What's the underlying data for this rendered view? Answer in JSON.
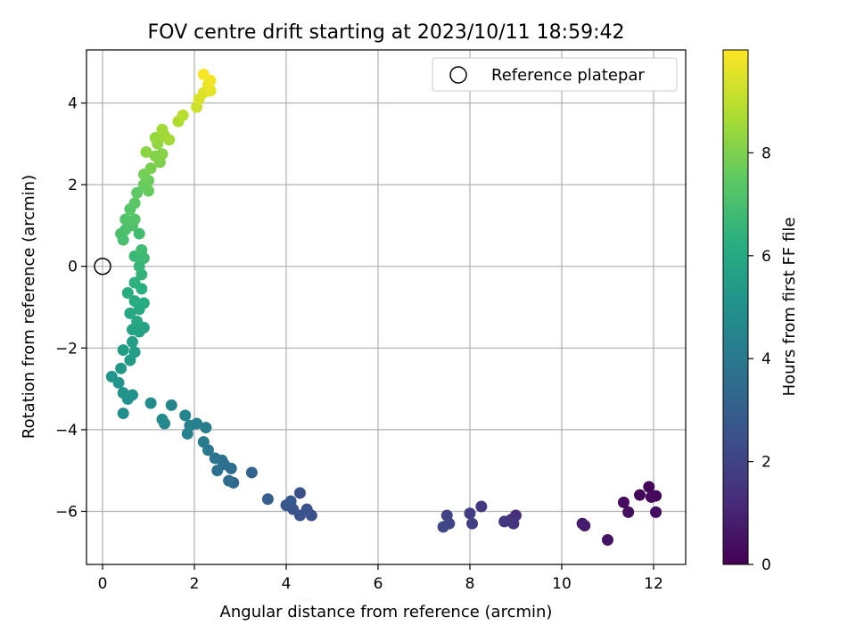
{
  "chart_data": {
    "type": "scatter",
    "title": "FOV centre drift starting at 2023/10/11 18:59:42",
    "xlabel": "Angular distance from reference (arcmin)",
    "ylabel": "Rotation from reference (arcmin)",
    "xlim": [
      -0.35,
      12.7
    ],
    "ylim": [
      -7.3,
      5.3
    ],
    "xticks": [
      0,
      2,
      4,
      6,
      8,
      10,
      12
    ],
    "yticks": [
      -6,
      -4,
      -2,
      0,
      2,
      4
    ],
    "grid": true,
    "legend": {
      "placement": "top-right",
      "entries": [
        "Reference platepar"
      ]
    },
    "reference_point": {
      "x": 0,
      "y": 0,
      "label": "Reference platepar"
    },
    "colorbar": {
      "label": "Hours from first FF file",
      "range": [
        0,
        10
      ],
      "ticks": [
        0,
        2,
        4,
        6,
        8
      ],
      "colormap": "viridis"
    },
    "series": [
      {
        "points": [
          {
            "x": 11.9,
            "y": -5.4,
            "c": 0.1
          },
          {
            "x": 12.05,
            "y": -5.62,
            "c": 0.15
          },
          {
            "x": 11.7,
            "y": -5.6,
            "c": 0.2
          },
          {
            "x": 11.95,
            "y": -5.65,
            "c": 0.25
          },
          {
            "x": 11.35,
            "y": -5.78,
            "c": 0.3
          },
          {
            "x": 12.05,
            "y": -6.02,
            "c": 0.35
          },
          {
            "x": 11.45,
            "y": -6.02,
            "c": 0.4
          },
          {
            "x": 11.0,
            "y": -6.7,
            "c": 0.5
          },
          {
            "x": 10.45,
            "y": -6.3,
            "c": 0.7
          },
          {
            "x": 10.5,
            "y": -6.35,
            "c": 0.8
          },
          {
            "x": 9.0,
            "y": -6.1,
            "c": 1.3
          },
          {
            "x": 8.9,
            "y": -6.2,
            "c": 1.4
          },
          {
            "x": 8.95,
            "y": -6.3,
            "c": 1.5
          },
          {
            "x": 8.75,
            "y": -6.25,
            "c": 1.6
          },
          {
            "x": 8.25,
            "y": -5.88,
            "c": 1.7
          },
          {
            "x": 8.0,
            "y": -6.05,
            "c": 1.8
          },
          {
            "x": 8.05,
            "y": -6.3,
            "c": 1.9
          },
          {
            "x": 7.5,
            "y": -6.1,
            "c": 2.0
          },
          {
            "x": 7.55,
            "y": -6.3,
            "c": 2.05
          },
          {
            "x": 7.42,
            "y": -6.38,
            "c": 2.1
          },
          {
            "x": 4.3,
            "y": -5.55,
            "c": 2.4
          },
          {
            "x": 4.55,
            "y": -6.1,
            "c": 2.45
          },
          {
            "x": 4.45,
            "y": -5.95,
            "c": 2.5
          },
          {
            "x": 4.3,
            "y": -6.1,
            "c": 2.55
          },
          {
            "x": 4.15,
            "y": -5.95,
            "c": 2.6
          },
          {
            "x": 4.0,
            "y": -5.85,
            "c": 2.7
          },
          {
            "x": 4.1,
            "y": -5.75,
            "c": 2.8
          },
          {
            "x": 3.6,
            "y": -5.7,
            "c": 3.0
          },
          {
            "x": 3.25,
            "y": -5.05,
            "c": 3.2
          },
          {
            "x": 2.85,
            "y": -5.3,
            "c": 3.4
          },
          {
            "x": 2.75,
            "y": -5.25,
            "c": 3.5
          },
          {
            "x": 2.8,
            "y": -4.95,
            "c": 3.55
          },
          {
            "x": 2.65,
            "y": -4.85,
            "c": 3.6
          },
          {
            "x": 2.6,
            "y": -4.75,
            "c": 3.7
          },
          {
            "x": 2.5,
            "y": -5.0,
            "c": 3.75
          },
          {
            "x": 2.45,
            "y": -4.7,
            "c": 3.8
          },
          {
            "x": 2.3,
            "y": -4.5,
            "c": 4.0
          },
          {
            "x": 2.2,
            "y": -4.3,
            "c": 4.1
          },
          {
            "x": 2.25,
            "y": -3.95,
            "c": 4.2
          },
          {
            "x": 2.05,
            "y": -3.85,
            "c": 4.3
          },
          {
            "x": 1.9,
            "y": -3.9,
            "c": 4.35
          },
          {
            "x": 1.85,
            "y": -4.1,
            "c": 4.4
          },
          {
            "x": 1.8,
            "y": -3.65,
            "c": 4.5
          },
          {
            "x": 1.5,
            "y": -3.4,
            "c": 4.6
          },
          {
            "x": 1.35,
            "y": -3.85,
            "c": 4.65
          },
          {
            "x": 1.3,
            "y": -3.75,
            "c": 4.7
          },
          {
            "x": 1.05,
            "y": -3.35,
            "c": 4.8
          },
          {
            "x": 0.45,
            "y": -3.6,
            "c": 4.9
          },
          {
            "x": 0.65,
            "y": -3.15,
            "c": 5.0
          },
          {
            "x": 0.55,
            "y": -3.25,
            "c": 5.05
          },
          {
            "x": 0.45,
            "y": -3.1,
            "c": 5.1
          },
          {
            "x": 0.35,
            "y": -2.85,
            "c": 5.15
          },
          {
            "x": 0.2,
            "y": -2.7,
            "c": 5.2
          },
          {
            "x": 0.4,
            "y": -2.5,
            "c": 5.3
          },
          {
            "x": 0.6,
            "y": -2.3,
            "c": 5.4
          },
          {
            "x": 0.45,
            "y": -2.05,
            "c": 5.5
          },
          {
            "x": 0.7,
            "y": -2.1,
            "c": 5.55
          },
          {
            "x": 0.65,
            "y": -1.85,
            "c": 5.6
          },
          {
            "x": 0.8,
            "y": -1.6,
            "c": 5.7
          },
          {
            "x": 0.65,
            "y": -1.55,
            "c": 5.75
          },
          {
            "x": 0.9,
            "y": -1.5,
            "c": 5.8
          },
          {
            "x": 0.75,
            "y": -1.35,
            "c": 5.9
          },
          {
            "x": 0.6,
            "y": -1.15,
            "c": 6.0
          },
          {
            "x": 0.8,
            "y": -1.05,
            "c": 6.05
          },
          {
            "x": 0.9,
            "y": -0.9,
            "c": 6.1
          },
          {
            "x": 0.7,
            "y": -0.85,
            "c": 6.15
          },
          {
            "x": 0.55,
            "y": -0.65,
            "c": 6.2
          },
          {
            "x": 0.85,
            "y": -0.55,
            "c": 6.3
          },
          {
            "x": 0.7,
            "y": -0.4,
            "c": 6.4
          },
          {
            "x": 0.85,
            "y": -0.2,
            "c": 6.5
          },
          {
            "x": 0.8,
            "y": 0.0,
            "c": 6.6
          },
          {
            "x": 0.7,
            "y": 0.25,
            "c": 6.7
          },
          {
            "x": 0.9,
            "y": 0.2,
            "c": 6.8
          },
          {
            "x": 0.85,
            "y": 0.4,
            "c": 6.85
          },
          {
            "x": 0.8,
            "y": 0.8,
            "c": 6.9
          },
          {
            "x": 0.45,
            "y": 0.65,
            "c": 7.0
          },
          {
            "x": 0.4,
            "y": 0.8,
            "c": 7.05
          },
          {
            "x": 0.5,
            "y": 0.9,
            "c": 7.1
          },
          {
            "x": 0.65,
            "y": 1.0,
            "c": 7.15
          },
          {
            "x": 0.5,
            "y": 1.15,
            "c": 7.2
          },
          {
            "x": 0.7,
            "y": 1.15,
            "c": 7.25
          },
          {
            "x": 0.6,
            "y": 1.4,
            "c": 7.3
          },
          {
            "x": 0.7,
            "y": 1.55,
            "c": 7.4
          },
          {
            "x": 0.75,
            "y": 1.8,
            "c": 7.5
          },
          {
            "x": 0.9,
            "y": 2.0,
            "c": 7.6
          },
          {
            "x": 1.0,
            "y": 1.85,
            "c": 7.65
          },
          {
            "x": 1.0,
            "y": 2.1,
            "c": 7.7
          },
          {
            "x": 0.9,
            "y": 2.25,
            "c": 7.8
          },
          {
            "x": 1.05,
            "y": 2.4,
            "c": 7.9
          },
          {
            "x": 1.25,
            "y": 2.55,
            "c": 8.0
          },
          {
            "x": 1.15,
            "y": 2.7,
            "c": 8.1
          },
          {
            "x": 1.3,
            "y": 2.75,
            "c": 8.15
          },
          {
            "x": 0.95,
            "y": 2.8,
            "c": 8.2
          },
          {
            "x": 1.2,
            "y": 3.0,
            "c": 8.3
          },
          {
            "x": 1.15,
            "y": 3.15,
            "c": 8.4
          },
          {
            "x": 1.35,
            "y": 3.2,
            "c": 8.5
          },
          {
            "x": 1.3,
            "y": 3.35,
            "c": 8.55
          },
          {
            "x": 1.45,
            "y": 3.1,
            "c": 8.6
          },
          {
            "x": 1.65,
            "y": 3.55,
            "c": 8.8
          },
          {
            "x": 1.75,
            "y": 3.7,
            "c": 8.9
          },
          {
            "x": 2.05,
            "y": 3.9,
            "c": 9.2
          },
          {
            "x": 2.1,
            "y": 4.1,
            "c": 9.4
          },
          {
            "x": 2.2,
            "y": 4.25,
            "c": 9.5
          },
          {
            "x": 2.35,
            "y": 4.3,
            "c": 9.6
          },
          {
            "x": 2.3,
            "y": 4.45,
            "c": 9.7
          },
          {
            "x": 2.35,
            "y": 4.55,
            "c": 9.8
          },
          {
            "x": 2.2,
            "y": 4.7,
            "c": 9.9
          }
        ]
      }
    ]
  }
}
